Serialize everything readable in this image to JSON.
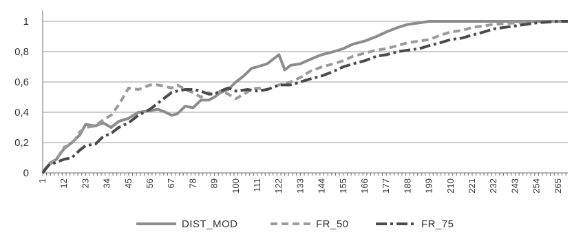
{
  "chart_data": {
    "type": "line",
    "x_ticks": [
      "1",
      "12",
      "23",
      "34",
      "45",
      "56",
      "67",
      "78",
      "89",
      "100",
      "111",
      "122",
      "133",
      "144",
      "155",
      "166",
      "177",
      "188",
      "199",
      "210",
      "221",
      "232",
      "243",
      "254",
      "265"
    ],
    "y_ticks": [
      "0",
      "0,2",
      "0,4",
      "0,6",
      "0,8",
      "1"
    ],
    "ylim": [
      0,
      1
    ],
    "xlim": [
      1,
      270
    ],
    "grid": "horizontal",
    "legend_position": "bottom",
    "colors": {
      "DIST_MOD": "#8c8c8c",
      "FR_50": "#9a9a9a",
      "FR_75": "#4a4a4a",
      "grid": "#9c9c9c",
      "axis": "#6f6f6f"
    },
    "series": [
      {
        "name": "DIST_MOD",
        "style": "solid",
        "points": [
          [
            1,
            0
          ],
          [
            4,
            0.05
          ],
          [
            8,
            0.09
          ],
          [
            12,
            0.16
          ],
          [
            16,
            0.2
          ],
          [
            20,
            0.25
          ],
          [
            23,
            0.32
          ],
          [
            28,
            0.31
          ],
          [
            32,
            0.33
          ],
          [
            36,
            0.3
          ],
          [
            40,
            0.34
          ],
          [
            45,
            0.36
          ],
          [
            50,
            0.4
          ],
          [
            56,
            0.41
          ],
          [
            60,
            0.42
          ],
          [
            64,
            0.4
          ],
          [
            67,
            0.38
          ],
          [
            70,
            0.39
          ],
          [
            74,
            0.44
          ],
          [
            78,
            0.43
          ],
          [
            82,
            0.48
          ],
          [
            86,
            0.48
          ],
          [
            89,
            0.5
          ],
          [
            92,
            0.53
          ],
          [
            96,
            0.55
          ],
          [
            100,
            0.6
          ],
          [
            104,
            0.64
          ],
          [
            108,
            0.69
          ],
          [
            111,
            0.7
          ],
          [
            116,
            0.72
          ],
          [
            122,
            0.78
          ],
          [
            125,
            0.68
          ],
          [
            128,
            0.71
          ],
          [
            133,
            0.72
          ],
          [
            140,
            0.76
          ],
          [
            144,
            0.78
          ],
          [
            150,
            0.8
          ],
          [
            155,
            0.82
          ],
          [
            160,
            0.85
          ],
          [
            166,
            0.87
          ],
          [
            172,
            0.9
          ],
          [
            177,
            0.93
          ],
          [
            183,
            0.96
          ],
          [
            188,
            0.98
          ],
          [
            194,
            0.99
          ],
          [
            199,
            1.0
          ],
          [
            270,
            1.0
          ]
        ]
      },
      {
        "name": "FR_50",
        "style": "dashed",
        "points": [
          [
            1,
            0
          ],
          [
            4,
            0.06
          ],
          [
            8,
            0.09
          ],
          [
            12,
            0.17
          ],
          [
            16,
            0.19
          ],
          [
            20,
            0.27
          ],
          [
            23,
            0.3
          ],
          [
            28,
            0.31
          ],
          [
            32,
            0.35
          ],
          [
            36,
            0.38
          ],
          [
            40,
            0.45
          ],
          [
            45,
            0.56
          ],
          [
            50,
            0.55
          ],
          [
            56,
            0.58
          ],
          [
            60,
            0.58
          ],
          [
            64,
            0.57
          ],
          [
            67,
            0.56
          ],
          [
            70,
            0.58
          ],
          [
            74,
            0.55
          ],
          [
            78,
            0.53
          ],
          [
            82,
            0.5
          ],
          [
            86,
            0.53
          ],
          [
            89,
            0.51
          ],
          [
            92,
            0.54
          ],
          [
            96,
            0.52
          ],
          [
            100,
            0.49
          ],
          [
            104,
            0.52
          ],
          [
            108,
            0.55
          ],
          [
            111,
            0.56
          ],
          [
            116,
            0.55
          ],
          [
            122,
            0.58
          ],
          [
            128,
            0.6
          ],
          [
            133,
            0.63
          ],
          [
            138,
            0.67
          ],
          [
            144,
            0.7
          ],
          [
            150,
            0.72
          ],
          [
            155,
            0.74
          ],
          [
            160,
            0.77
          ],
          [
            166,
            0.79
          ],
          [
            172,
            0.81
          ],
          [
            177,
            0.82
          ],
          [
            183,
            0.84
          ],
          [
            188,
            0.86
          ],
          [
            194,
            0.87
          ],
          [
            199,
            0.88
          ],
          [
            205,
            0.91
          ],
          [
            210,
            0.93
          ],
          [
            216,
            0.94
          ],
          [
            221,
            0.96
          ],
          [
            227,
            0.97
          ],
          [
            232,
            0.98
          ],
          [
            243,
            0.99
          ],
          [
            254,
            1.0
          ],
          [
            270,
            1.0
          ]
        ]
      },
      {
        "name": "FR_75",
        "style": "dashdot",
        "points": [
          [
            1,
            0
          ],
          [
            4,
            0.05
          ],
          [
            8,
            0.07
          ],
          [
            12,
            0.09
          ],
          [
            16,
            0.1
          ],
          [
            20,
            0.15
          ],
          [
            23,
            0.18
          ],
          [
            28,
            0.19
          ],
          [
            32,
            0.24
          ],
          [
            36,
            0.26
          ],
          [
            40,
            0.3
          ],
          [
            45,
            0.33
          ],
          [
            50,
            0.38
          ],
          [
            56,
            0.42
          ],
          [
            60,
            0.46
          ],
          [
            64,
            0.5
          ],
          [
            67,
            0.53
          ],
          [
            70,
            0.54
          ],
          [
            74,
            0.55
          ],
          [
            78,
            0.55
          ],
          [
            82,
            0.54
          ],
          [
            86,
            0.52
          ],
          [
            89,
            0.52
          ],
          [
            92,
            0.54
          ],
          [
            96,
            0.56
          ],
          [
            100,
            0.54
          ],
          [
            106,
            0.55
          ],
          [
            111,
            0.54
          ],
          [
            116,
            0.55
          ],
          [
            122,
            0.58
          ],
          [
            128,
            0.58
          ],
          [
            133,
            0.6
          ],
          [
            138,
            0.62
          ],
          [
            144,
            0.64
          ],
          [
            150,
            0.67
          ],
          [
            155,
            0.7
          ],
          [
            160,
            0.72
          ],
          [
            166,
            0.74
          ],
          [
            172,
            0.77
          ],
          [
            177,
            0.78
          ],
          [
            183,
            0.8
          ],
          [
            188,
            0.81
          ],
          [
            194,
            0.82
          ],
          [
            199,
            0.84
          ],
          [
            205,
            0.86
          ],
          [
            210,
            0.88
          ],
          [
            216,
            0.89
          ],
          [
            221,
            0.91
          ],
          [
            227,
            0.93
          ],
          [
            232,
            0.95
          ],
          [
            243,
            0.97
          ],
          [
            254,
            0.99
          ],
          [
            265,
            1.0
          ],
          [
            270,
            1.0
          ]
        ]
      }
    ]
  }
}
